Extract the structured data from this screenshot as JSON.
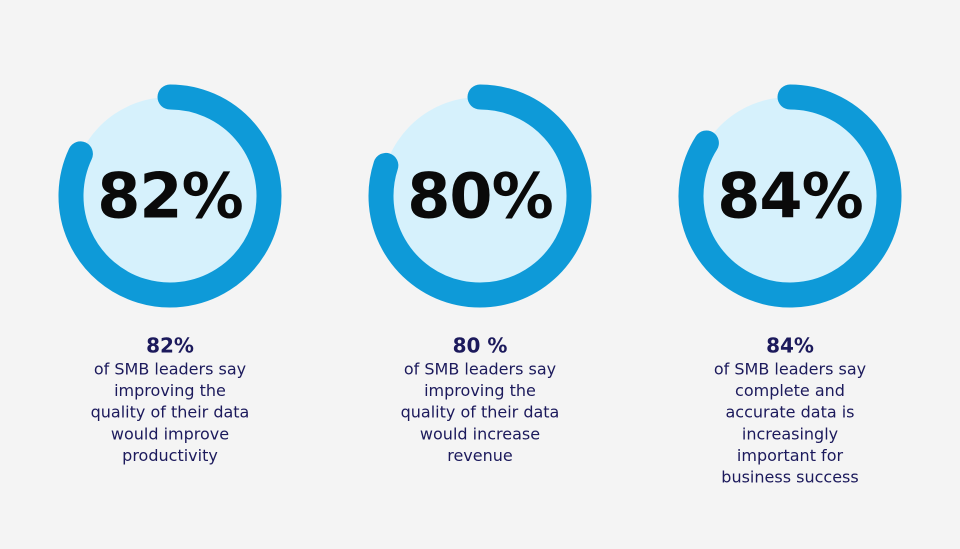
{
  "chart_data": [
    {
      "type": "donut",
      "values": [
        82
      ],
      "value_labels": [
        "82%"
      ],
      "ylim": [
        0,
        100
      ],
      "color": "#0e9ad8",
      "track_color": "#d6f1fc",
      "heading": "82%",
      "caption": [
        "of SMB leaders say",
        "improving the",
        "quality of their data",
        "would improve",
        "productivity"
      ]
    },
    {
      "type": "donut",
      "values": [
        80
      ],
      "value_labels": [
        "80%"
      ],
      "ylim": [
        0,
        100
      ],
      "color": "#0e9ad8",
      "track_color": "#d6f1fc",
      "heading": "80 %",
      "caption": [
        "of SMB leaders say",
        "improving the",
        "quality of their data",
        "would increase",
        "revenue"
      ]
    },
    {
      "type": "donut",
      "values": [
        84
      ],
      "value_labels": [
        "84%"
      ],
      "ylim": [
        0,
        100
      ],
      "color": "#0e9ad8",
      "track_color": "#d6f1fc",
      "heading": "84%",
      "caption": [
        "of SMB leaders say",
        "complete and",
        "accurate data is",
        "increasingly",
        "important for",
        "business success"
      ]
    }
  ]
}
